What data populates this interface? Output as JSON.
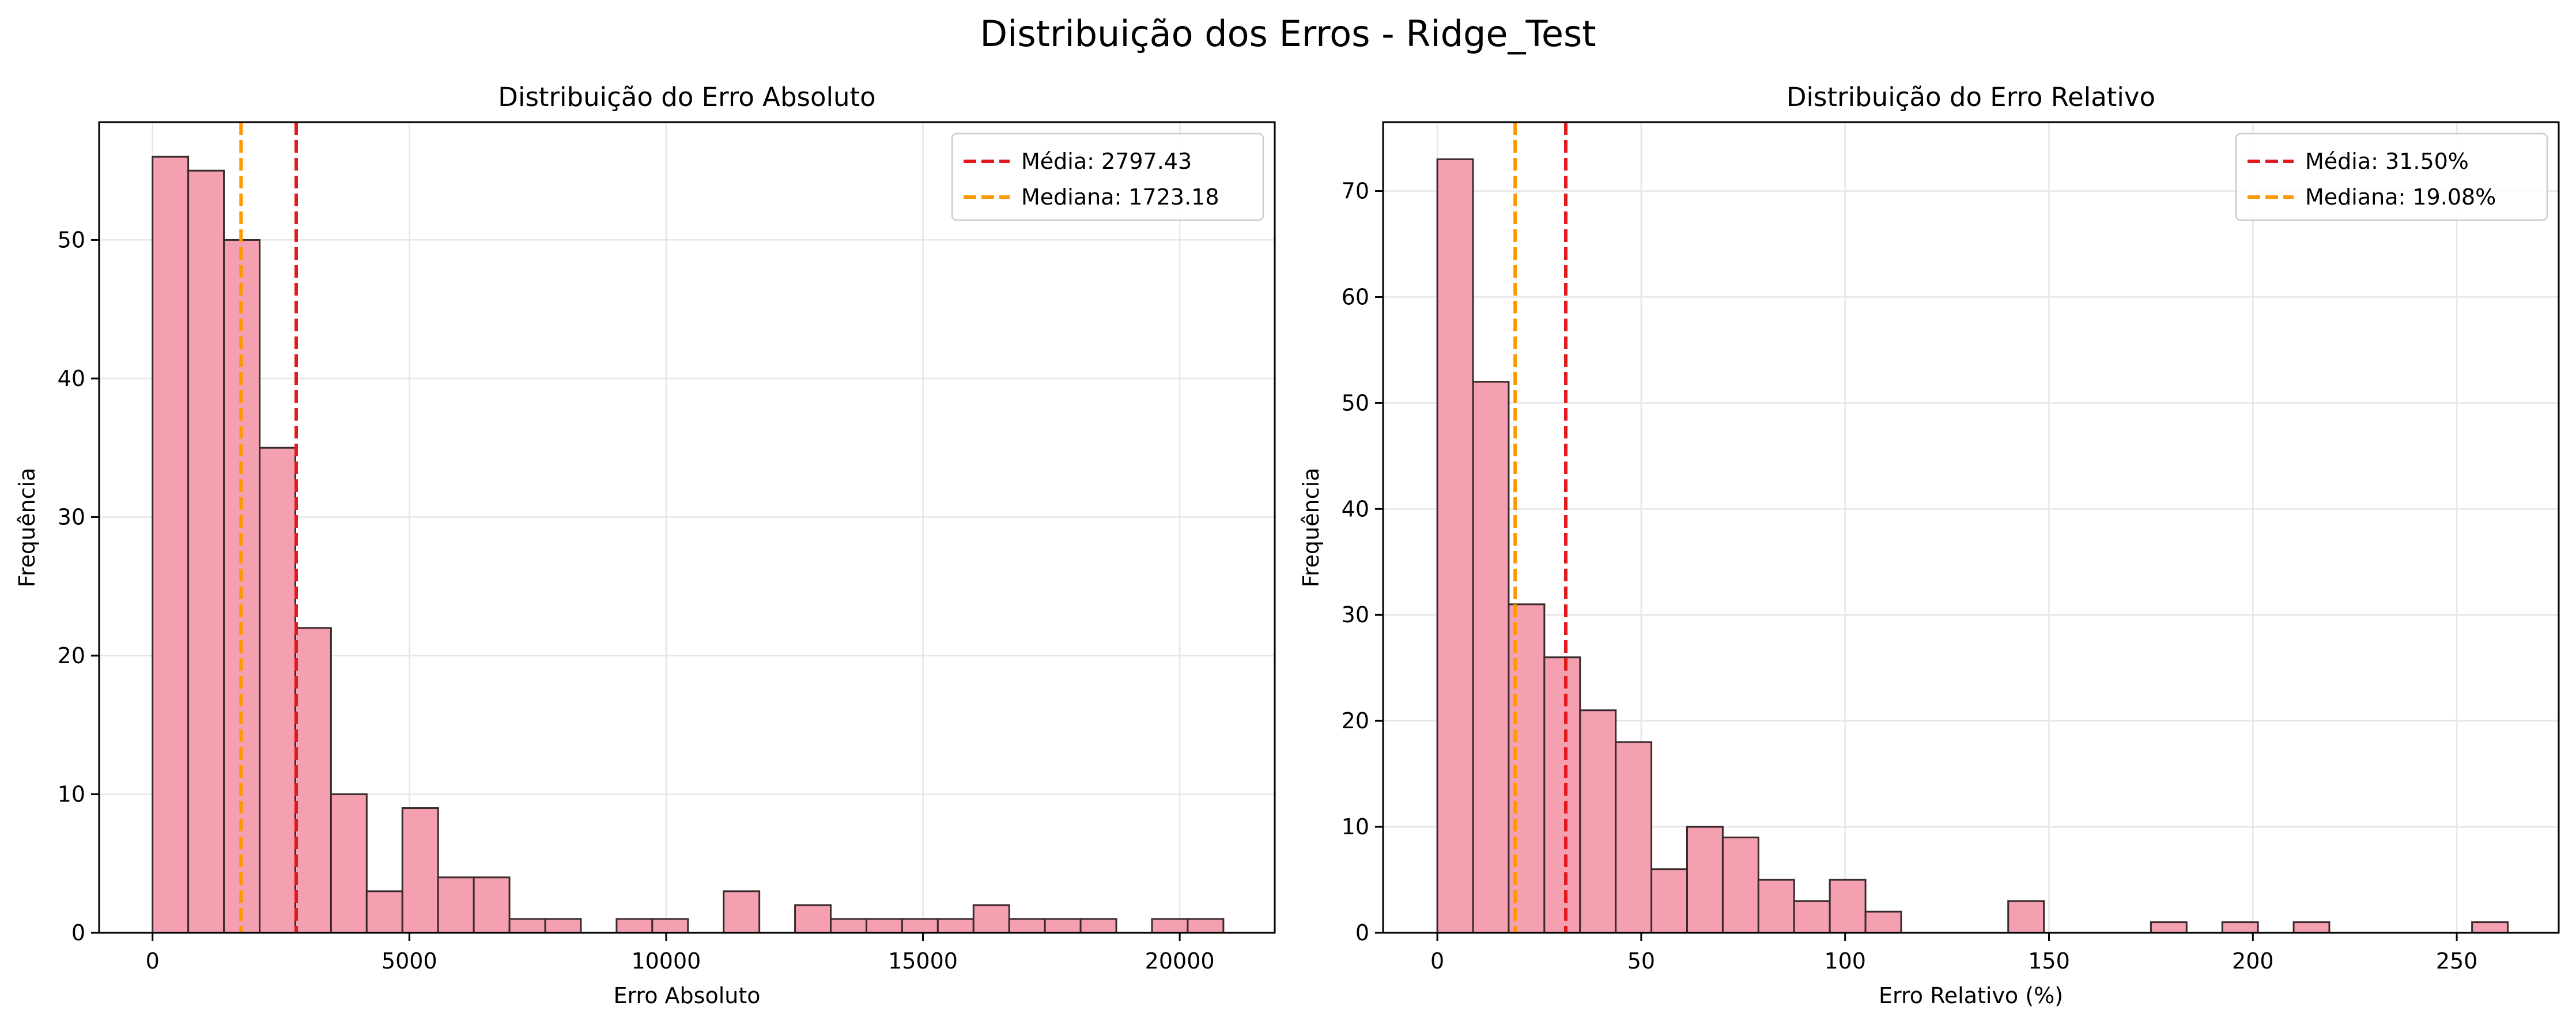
{
  "figure": {
    "suptitle": "Distribuição dos Erros - Ridge_Test"
  },
  "colors": {
    "bar_fill": "#f4a0b0",
    "bar_edge": "#3a2a2d",
    "mean_line": "#e31a1c",
    "median_line": "#ff9900",
    "grid": "#e6e6e6"
  },
  "chart_data": [
    {
      "type": "bar",
      "title": "Distribuição do Erro Absoluto",
      "xlabel": "Erro Absoluto",
      "ylabel": "Frequência",
      "xlim": [
        -1040,
        21850
      ],
      "ylim": [
        0,
        58.5
      ],
      "xticks": [
        0,
        5000,
        10000,
        15000,
        20000
      ],
      "yticks": [
        0,
        10,
        20,
        30,
        40,
        50
      ],
      "grid": true,
      "bin_start": 0,
      "bin_width": 695,
      "values": [
        56,
        55,
        50,
        35,
        22,
        10,
        3,
        9,
        4,
        4,
        1,
        1,
        0,
        1,
        1,
        0,
        3,
        0,
        2,
        1,
        1,
        1,
        1,
        2,
        1,
        1,
        1,
        0,
        1,
        1
      ],
      "lines": [
        {
          "kind": "mean",
          "x": 2797.43,
          "label": "Média: 2797.43"
        },
        {
          "kind": "median",
          "x": 1723.18,
          "label": "Mediana: 1723.18"
        }
      ],
      "legend_position": "upper-right"
    },
    {
      "type": "bar",
      "title": "Distribuição do Erro Relativo",
      "xlabel": "Erro Relativo (%)",
      "ylabel": "Frequência",
      "xlim": [
        -13.3,
        275
      ],
      "ylim": [
        0,
        76.5
      ],
      "xticks": [
        0,
        50,
        100,
        150,
        200,
        250
      ],
      "yticks": [
        0,
        10,
        20,
        30,
        40,
        50,
        60,
        70
      ],
      "grid": true,
      "bin_start": 0,
      "bin_width": 8.75,
      "values": [
        73,
        52,
        31,
        26,
        21,
        18,
        6,
        10,
        9,
        5,
        3,
        5,
        2,
        0,
        0,
        0,
        3,
        0,
        0,
        0,
        1,
        0,
        1,
        0,
        1,
        0,
        0,
        0,
        0,
        1
      ],
      "lines": [
        {
          "kind": "mean",
          "x": 31.5,
          "label": "Média: 31.50%"
        },
        {
          "kind": "median",
          "x": 19.08,
          "label": "Mediana: 19.08%"
        }
      ],
      "legend_position": "upper-right"
    }
  ]
}
